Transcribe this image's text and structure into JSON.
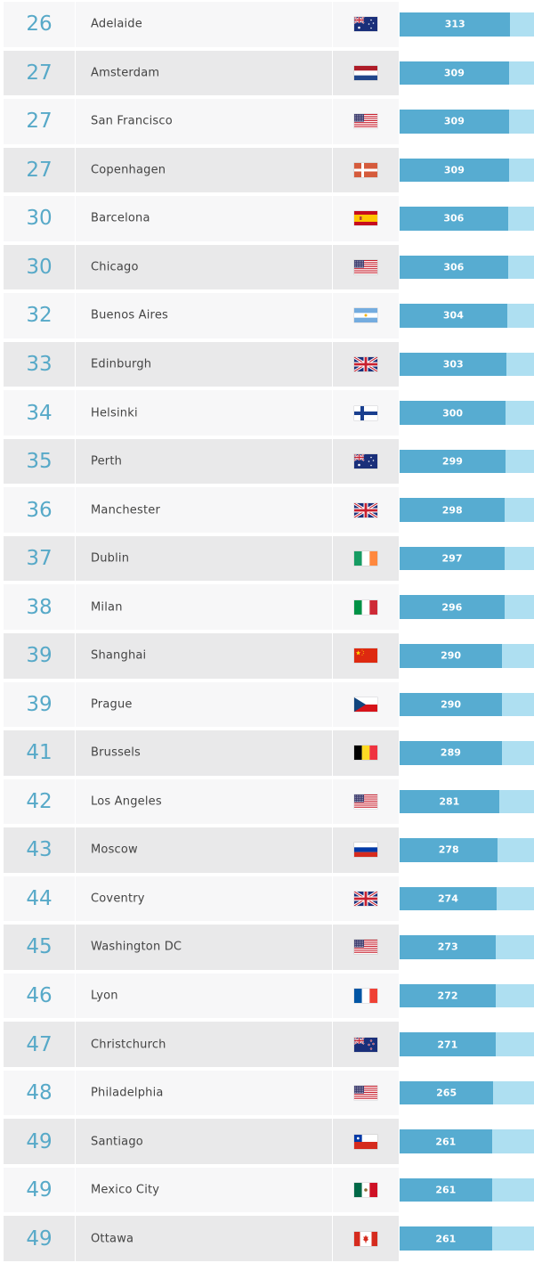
{
  "colors": {
    "rank_text": "#57a9c8",
    "bar_fill": "#57acd1",
    "bar_track": "#aedff1",
    "row_even": "#e9e9ea",
    "row_odd": "#f7f7f8"
  },
  "chart_data": {
    "type": "bar",
    "orientation": "horizontal",
    "scale_max": 380,
    "rows": [
      {
        "rank": "26",
        "city": "Adelaide",
        "flag": "australia-flag-icon",
        "value": 313
      },
      {
        "rank": "27",
        "city": "Amsterdam",
        "flag": "netherlands-flag-icon",
        "value": 309
      },
      {
        "rank": "27",
        "city": "San Francisco",
        "flag": "usa-flag-icon",
        "value": 309
      },
      {
        "rank": "27",
        "city": "Copenhagen",
        "flag": "denmark-flag-icon",
        "value": 309
      },
      {
        "rank": "30",
        "city": "Barcelona",
        "flag": "spain-flag-icon",
        "value": 306
      },
      {
        "rank": "30",
        "city": "Chicago",
        "flag": "usa-flag-icon",
        "value": 306
      },
      {
        "rank": "32",
        "city": "Buenos Aires",
        "flag": "argentina-flag-icon",
        "value": 304
      },
      {
        "rank": "33",
        "city": "Edinburgh",
        "flag": "uk-flag-icon",
        "value": 303
      },
      {
        "rank": "34",
        "city": "Helsinki",
        "flag": "finland-flag-icon",
        "value": 300
      },
      {
        "rank": "35",
        "city": "Perth",
        "flag": "australia-flag-icon",
        "value": 299
      },
      {
        "rank": "36",
        "city": "Manchester",
        "flag": "uk-flag-icon",
        "value": 298
      },
      {
        "rank": "37",
        "city": "Dublin",
        "flag": "ireland-flag-icon",
        "value": 297
      },
      {
        "rank": "38",
        "city": "Milan",
        "flag": "italy-flag-icon",
        "value": 296
      },
      {
        "rank": "39",
        "city": "Shanghai",
        "flag": "china-flag-icon",
        "value": 290
      },
      {
        "rank": "39",
        "city": "Prague",
        "flag": "czech-flag-icon",
        "value": 290
      },
      {
        "rank": "41",
        "city": "Brussels",
        "flag": "belgium-flag-icon",
        "value": 289
      },
      {
        "rank": "42",
        "city": "Los Angeles",
        "flag": "usa-flag-icon",
        "value": 281
      },
      {
        "rank": "43",
        "city": "Moscow",
        "flag": "russia-flag-icon",
        "value": 278
      },
      {
        "rank": "44",
        "city": "Coventry",
        "flag": "uk-flag-icon",
        "value": 274
      },
      {
        "rank": "45",
        "city": "Washington DC",
        "flag": "usa-flag-icon",
        "value": 273
      },
      {
        "rank": "46",
        "city": "Lyon",
        "flag": "france-flag-icon",
        "value": 272
      },
      {
        "rank": "47",
        "city": "Christchurch",
        "flag": "newzealand-flag-icon",
        "value": 271
      },
      {
        "rank": "48",
        "city": "Philadelphia",
        "flag": "usa-flag-icon",
        "value": 265
      },
      {
        "rank": "49",
        "city": "Santiago",
        "flag": "chile-flag-icon",
        "value": 261
      },
      {
        "rank": "49",
        "city": "Mexico City",
        "flag": "mexico-flag-icon",
        "value": 261
      },
      {
        "rank": "49",
        "city": "Ottawa",
        "flag": "canada-flag-icon",
        "value": 261
      }
    ]
  }
}
